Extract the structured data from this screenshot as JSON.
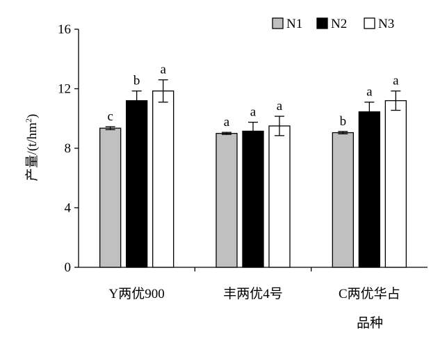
{
  "chart_data": {
    "type": "bar",
    "title": "",
    "xlabel": "品种",
    "ylabel": "产量/(t/hm",
    "ylabel_sup": "2",
    "ylabel_suffix": ")",
    "ylim": [
      0,
      16
    ],
    "yticks": [
      0,
      4,
      8,
      12,
      16
    ],
    "grid": false,
    "legend_position": "top-right",
    "categories": [
      [
        "Y两优900"
      ],
      [
        "丰两优4号"
      ],
      [
        "C两优华占"
      ]
    ],
    "series": [
      {
        "name": "N1",
        "color": "#c0c0c0",
        "values": [
          9.35,
          9.0,
          9.05
        ],
        "errors": [
          0.1,
          0.07,
          0.08
        ],
        "letters": [
          "c",
          "a",
          "b"
        ]
      },
      {
        "name": "N2",
        "color": "#000000",
        "values": [
          11.2,
          9.15,
          10.45
        ],
        "errors": [
          0.65,
          0.6,
          0.65
        ],
        "letters": [
          "b",
          "a",
          "a"
        ]
      },
      {
        "name": "N3",
        "color": "#ffffff",
        "values": [
          11.85,
          9.5,
          11.2
        ],
        "errors": [
          0.75,
          0.65,
          0.65
        ],
        "letters": [
          "a",
          "a",
          "a"
        ]
      }
    ]
  }
}
